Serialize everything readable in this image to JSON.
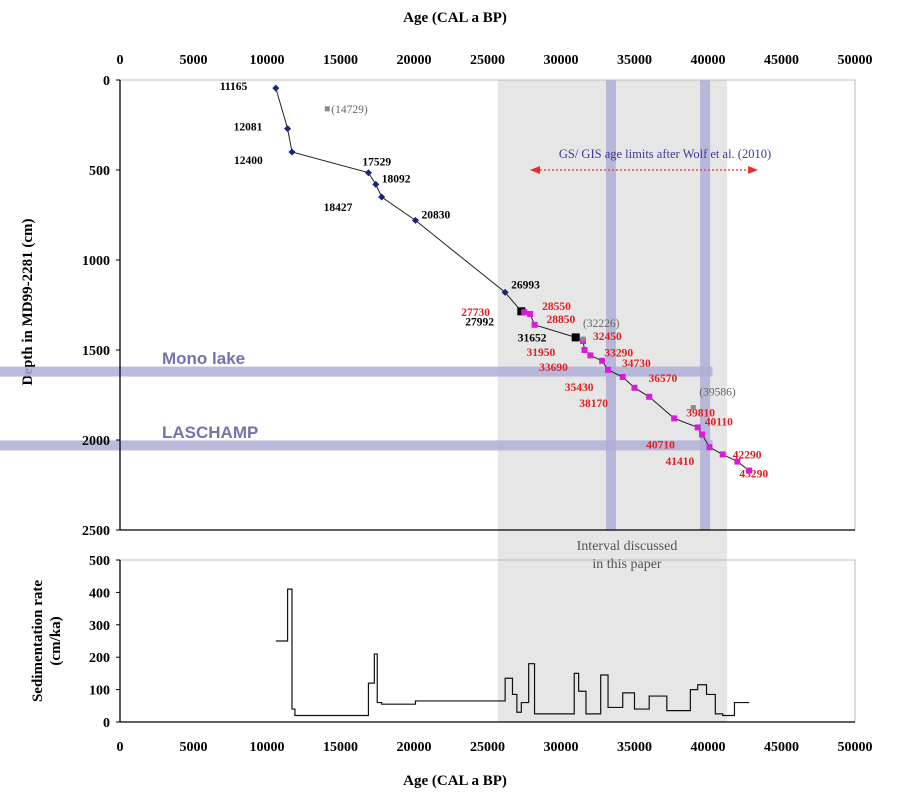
{
  "chart_data": [
    {
      "type": "line",
      "xlabel": "Age (CAL a  BP)",
      "ylabel": "Depth in MD99-2281 (cm)",
      "xlim": [
        0,
        50000
      ],
      "ylim": [
        0,
        2500
      ],
      "y_inverted": true,
      "xticks": [
        "0",
        "5000",
        "10000",
        "15000",
        "20000",
        "25000",
        "30000",
        "35000",
        "40000",
        "45000",
        "50000"
      ],
      "yticks": [
        "0",
        "500",
        "1000",
        "1500",
        "2000",
        "2500"
      ],
      "series": [
        {
          "marker": "diamond",
          "color": "#1a237e",
          "points": [
            {
              "x": 10600,
              "y": 45,
              "label": "11165"
            },
            {
              "x": 11400,
              "y": 270,
              "label": "12081"
            },
            {
              "x": 11700,
              "y": 400,
              "label": "12400"
            },
            {
              "x": 16900,
              "y": 515,
              "label": "17529"
            },
            {
              "x": 17400,
              "y": 580,
              "label": "18092"
            },
            {
              "x": 17800,
              "y": 650,
              "label": "18427"
            },
            {
              "x": 20100,
              "y": 780,
              "label": "20830"
            },
            {
              "x": 26200,
              "y": 1180,
              "label": "26993"
            }
          ]
        },
        {
          "marker": "square",
          "color": "#000000",
          "points": [
            {
              "x": 27300,
              "y": 1285,
              "label": "27992"
            },
            {
              "x": 31000,
              "y": 1430,
              "label": "31652"
            }
          ]
        },
        {
          "marker": "square",
          "color": "#d81bd8",
          "points": [
            {
              "x": 27500,
              "y": 1290,
              "label": "27730"
            },
            {
              "x": 27900,
              "y": 1300,
              "label": "28550"
            },
            {
              "x": 28200,
              "y": 1360,
              "label": "28850"
            },
            {
              "x": 31500,
              "y": 1450,
              "label": "32450"
            },
            {
              "x": 31600,
              "y": 1500,
              "label": "31950"
            },
            {
              "x": 32000,
              "y": 1530,
              "label": "33290"
            },
            {
              "x": 32800,
              "y": 1560,
              "label": "33690"
            },
            {
              "x": 33200,
              "y": 1610,
              "label": "34730"
            },
            {
              "x": 34200,
              "y": 1650,
              "label": "35430"
            },
            {
              "x": 35000,
              "y": 1710,
              "label": "36570"
            },
            {
              "x": 36000,
              "y": 1760,
              "label": "38170"
            },
            {
              "x": 37700,
              "y": 1880,
              "label": "39810"
            },
            {
              "x": 39300,
              "y": 1930,
              "label": "40110"
            },
            {
              "x": 39600,
              "y": 1970,
              "label": "40710"
            },
            {
              "x": 40100,
              "y": 2040,
              "label": "41410"
            },
            {
              "x": 41000,
              "y": 2080,
              "label": "42290"
            },
            {
              "x": 42000,
              "y": 2120,
              "label": "43290"
            },
            {
              "x": 42800,
              "y": 2170,
              "label": ""
            }
          ]
        },
        {
          "marker": "point",
          "color": "#888888",
          "points": [
            {
              "x": 14100,
              "y": 160,
              "label": "(14729)"
            },
            {
              "x": 31500,
              "y": 1440,
              "label": "(32226)"
            },
            {
              "x": 39000,
              "y": 1820,
              "label": "(39586)"
            }
          ]
        }
      ],
      "annotations": {
        "gs_gis_note": "GS/ GIS age limits after Wolf et al. (2010)",
        "interval_note_line1": "Interval discussed",
        "interval_note_line2": "in this paper",
        "gray_interval_x": [
          25700,
          41300
        ],
        "vertical_bands_x": [
          33400,
          39800
        ],
        "horizontal_bands": [
          {
            "label": "Mono lake",
            "y": 1620
          },
          {
            "label": "LASCHAMP",
            "y": 2030
          }
        ],
        "arrow_x": [
          23000,
          43000
        ],
        "arrow_y": 500
      }
    },
    {
      "type": "line",
      "xlabel": "Age (CAL a BP)",
      "ylabel_line1": "Sedimentation rate",
      "ylabel_line2": "(cm/ka)",
      "xlim": [
        0,
        50000
      ],
      "ylim": [
        0,
        500
      ],
      "yticks": [
        "0",
        "100",
        "200",
        "300",
        "400",
        "500"
      ],
      "step_x": [
        10600,
        11400,
        11400,
        11700,
        11700,
        11900,
        11900,
        16900,
        16900,
        17300,
        17300,
        17500,
        17500,
        17800,
        17800,
        20100,
        20100,
        26200,
        26200,
        26700,
        26700,
        27000,
        27000,
        27300,
        27300,
        27800,
        27800,
        28200,
        28200,
        30900,
        30900,
        31200,
        31200,
        31700,
        31700,
        32700,
        32700,
        33200,
        33200,
        34200,
        34200,
        35000,
        35000,
        36000,
        36000,
        37200,
        37200,
        38800,
        38800,
        39300,
        39300,
        39900,
        39900,
        40500,
        40500,
        41000,
        41000,
        41800,
        41800,
        42800
      ],
      "step_y": [
        250,
        250,
        410,
        410,
        40,
        40,
        20,
        20,
        120,
        120,
        210,
        210,
        60,
        60,
        55,
        55,
        65,
        65,
        135,
        135,
        85,
        85,
        30,
        30,
        60,
        60,
        180,
        180,
        25,
        25,
        150,
        150,
        95,
        95,
        25,
        25,
        145,
        145,
        45,
        45,
        90,
        90,
        40,
        40,
        80,
        80,
        35,
        35,
        100,
        100,
        115,
        115,
        85,
        85,
        25,
        25,
        20,
        20,
        60,
        60
      ]
    }
  ]
}
